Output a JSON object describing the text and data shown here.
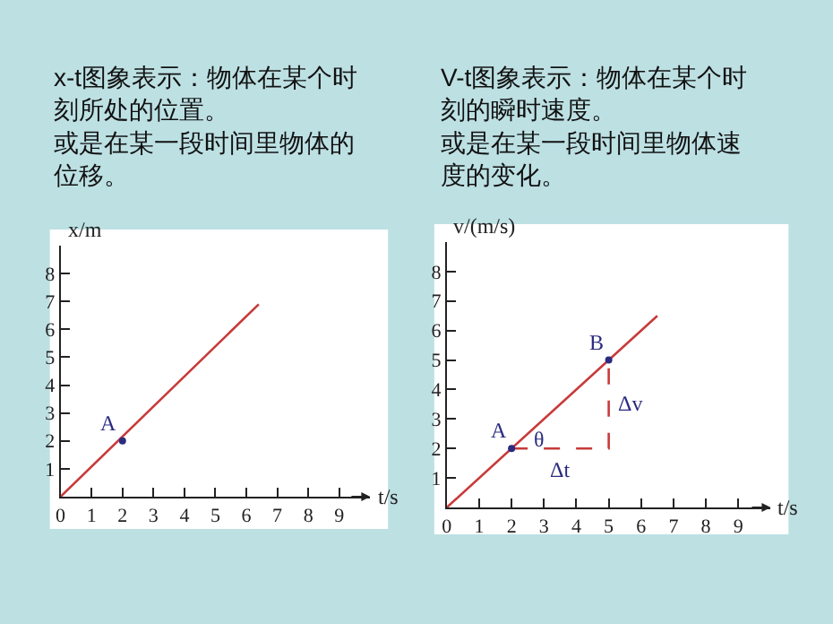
{
  "chart_data": [
    {
      "type": "line",
      "title": "x-t图象表示：物体在某个时刻所处的位置。",
      "subtitle": "或是在某一段时间里物体的位移。",
      "xlabel": "t/s",
      "ylabel": "x/m",
      "xlim": [
        0,
        10
      ],
      "ylim": [
        0,
        9
      ],
      "xticks": [
        0,
        1,
        2,
        3,
        4,
        5,
        6,
        7,
        8,
        9
      ],
      "yticks": [
        1,
        2,
        3,
        4,
        5,
        6,
        7,
        8
      ],
      "series": [
        {
          "color": "#c83a3a",
          "x": [
            0,
            6.4
          ],
          "values": [
            0,
            6.9
          ]
        },
        {
          "type": "scatter",
          "color": "#2b2b80",
          "marker": "circle",
          "x": [
            2
          ],
          "values": [
            2
          ]
        }
      ],
      "annotations": [
        {
          "text": "A",
          "x": 2,
          "y": 2
        }
      ]
    },
    {
      "type": "line",
      "title": "V-t图象表示：物体在某个时刻的瞬时速度。",
      "subtitle": "或是在某一段时间里物体速度的变化。",
      "xlabel": "t/s",
      "ylabel": "v/(m/s)",
      "xlim": [
        0,
        10
      ],
      "ylim": [
        0,
        9
      ],
      "xticks": [
        0,
        1,
        2,
        3,
        4,
        5,
        6,
        7,
        8,
        9
      ],
      "yticks": [
        1,
        2,
        3,
        4,
        5,
        6,
        7,
        8
      ],
      "series": [
        {
          "color": "#c83a3a",
          "x": [
            0,
            6.5
          ],
          "values": [
            0,
            6.5
          ]
        },
        {
          "color": "#c83a3a",
          "line_style": "dashed",
          "x": [
            2,
            5,
            5
          ],
          "values": [
            2,
            2,
            5
          ]
        },
        {
          "type": "scatter",
          "color": "#2b2b80",
          "marker": "circle",
          "x": [
            2,
            5
          ],
          "values": [
            2,
            5
          ]
        }
      ],
      "annotations": [
        {
          "text": "A",
          "x": 2,
          "y": 2
        },
        {
          "text": "B",
          "x": 5,
          "y": 5
        },
        {
          "text": "θ",
          "x": 2.85,
          "y": 2.3
        },
        {
          "text": "Δv",
          "x": 5,
          "y": 3.5
        },
        {
          "text": "Δt",
          "x": 3.5,
          "y": 2
        }
      ]
    }
  ]
}
